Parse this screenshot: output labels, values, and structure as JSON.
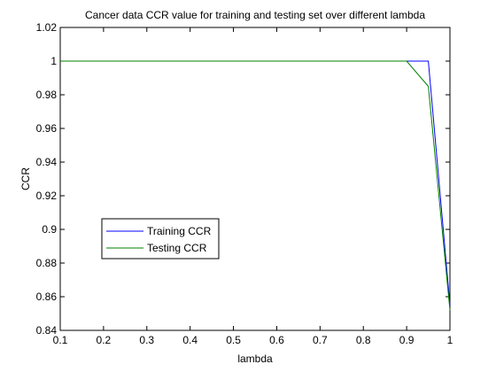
{
  "chart_data": {
    "type": "line",
    "title": "Cancer data CCR value for training and testing set over different lambda",
    "xlabel": "lambda",
    "ylabel": "CCR",
    "xlim": [
      0.1,
      1
    ],
    "ylim": [
      0.84,
      1.02
    ],
    "xticks": [
      "0.1",
      "0.2",
      "0.3",
      "0.4",
      "0.5",
      "0.6",
      "0.7",
      "0.8",
      "0.9",
      "1"
    ],
    "yticks": [
      "0.84",
      "0.86",
      "0.88",
      "0.9",
      "0.92",
      "0.94",
      "0.96",
      "0.98",
      "1",
      "1.02"
    ],
    "grid": false,
    "legend_position": "lower-left",
    "series": [
      {
        "name": "Training CCR",
        "color": "#0000ff",
        "x": [
          0.1,
          0.2,
          0.3,
          0.4,
          0.5,
          0.6,
          0.7,
          0.8,
          0.9,
          0.95,
          1.0
        ],
        "y": [
          1,
          1,
          1,
          1,
          1,
          1,
          1,
          1,
          1,
          1,
          0.855
        ]
      },
      {
        "name": "Testing CCR",
        "color": "#008000",
        "x": [
          0.1,
          0.2,
          0.3,
          0.4,
          0.5,
          0.6,
          0.7,
          0.8,
          0.9,
          0.95,
          1.0
        ],
        "y": [
          1,
          1,
          1,
          1,
          1,
          1,
          1,
          1,
          1,
          0.985,
          0.852
        ]
      }
    ]
  }
}
